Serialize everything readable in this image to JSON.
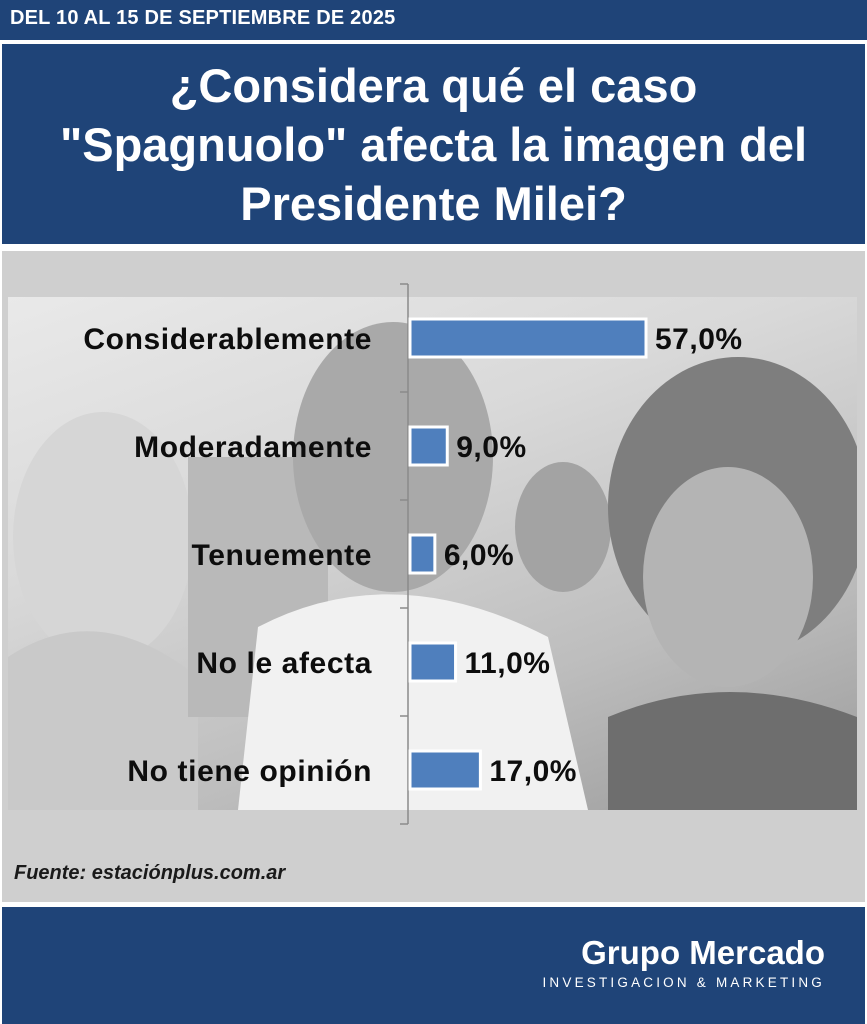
{
  "header": {
    "date_range": "DEL 10 AL 15 DE SEPTIEMBRE DE 2025",
    "question": "¿Considera qué el caso \"Spagnuolo\" afecta la imagen del Presidente Milei?"
  },
  "chart_data": {
    "type": "bar",
    "orientation": "horizontal",
    "categories": [
      "Considerablemente",
      "Moderadamente",
      "Tenuemente",
      "No le afecta",
      "No tiene opinión"
    ],
    "values": [
      57.0,
      9.0,
      6.0,
      11.0,
      17.0
    ],
    "value_labels": [
      "57,0%",
      "9,0%",
      "6,0%",
      "11,0%",
      "17,0%"
    ],
    "title": "",
    "xlabel": "",
    "ylabel": "",
    "xlim": [
      0,
      100
    ],
    "grid": false,
    "legend": "none",
    "bar_color": "#4f7fbd"
  },
  "source": "Fuente: estaciónplus.com.ar",
  "footer": {
    "brand": "Grupo Mercado",
    "tagline": "INVESTIGACION & MARKETING"
  },
  "colors": {
    "navy": "#1f4478",
    "bar": "#4f7fbd",
    "panel": "#cfcfcf"
  }
}
